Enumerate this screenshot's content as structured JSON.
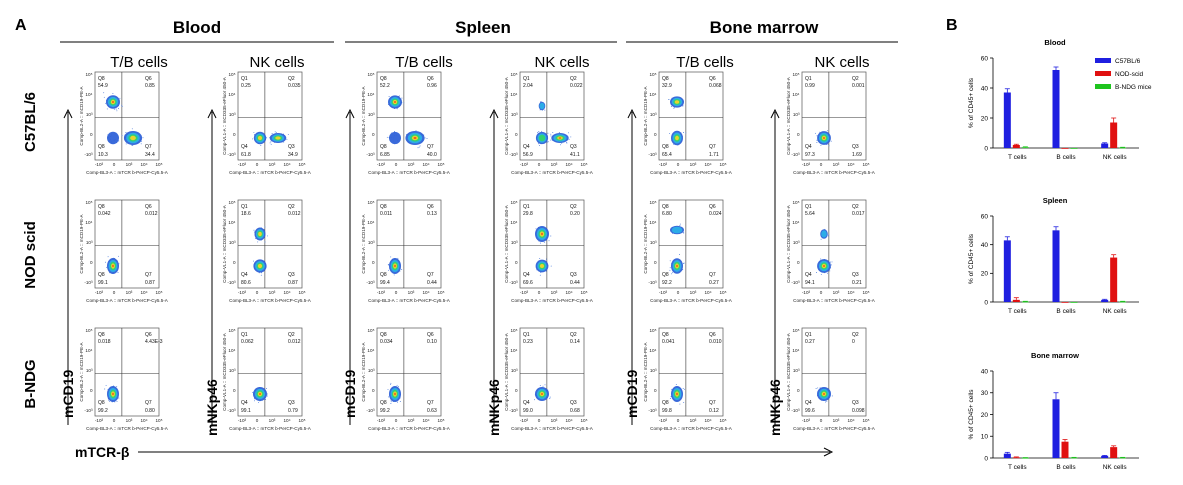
{
  "panel_a": {
    "label": "A",
    "tissues": [
      "Blood",
      "Spleen",
      "Bone marrow"
    ],
    "cell_types": [
      "T/B cells",
      "NK cells"
    ],
    "strains": [
      "C57BL/6",
      "NOD scid",
      "B-NDG"
    ],
    "y_markers": [
      "mCD19",
      "mNKp46"
    ],
    "x_marker": "mTCR-β",
    "tb_plot": {
      "y_axis_label": "Comp-BL2-A :: mCD19-PE-A",
      "x_axis_label": "Comp-BL3-A :: mTCR b-PerCP-Cy5.5-A",
      "quadrants": [
        "Q5",
        "Q6",
        "Q7",
        "Q8"
      ]
    },
    "nk_plot": {
      "y_axis_label": "Comp-VL1-A :: mCD335-eFluor 450-A",
      "x_axis_label": "Comp-BL3-A :: mTCR b-PerCP-Cy5.5-A",
      "quadrants": [
        "Q1",
        "Q2",
        "Q3",
        "Q4"
      ]
    },
    "axis_ticks": [
      "-10³",
      "0",
      "10³",
      "10⁴",
      "10⁵"
    ],
    "plots": [
      [
        {
          "type": "tb",
          "ul": "54.9",
          "ur": "0.85",
          "ll": "10.3",
          "lr": "34.4"
        },
        {
          "type": "nk",
          "ul": "0.25",
          "ur": "0.035",
          "ll": "61.8",
          "lr": "34.9"
        },
        {
          "type": "tb",
          "ul": "52.2",
          "ur": "0.96",
          "ll": "6.85",
          "lr": "40.0"
        },
        {
          "type": "nk",
          "ul": "2.04",
          "ur": "0.022",
          "ll": "56.9",
          "lr": "41.1"
        },
        {
          "type": "tb",
          "ul": "32.9",
          "ur": "0.068",
          "ll": "65.4",
          "lr": "1.71"
        },
        {
          "type": "nk",
          "ul": "0.99",
          "ur": "0.001",
          "ll": "97.3",
          "lr": "1.69"
        }
      ],
      [
        {
          "type": "tb",
          "ul": "0.042",
          "ur": "0.012",
          "ll": "99.1",
          "lr": "0.87"
        },
        {
          "type": "nk",
          "ul": "18.6",
          "ur": "0.012",
          "ll": "80.6",
          "lr": "0.87"
        },
        {
          "type": "tb",
          "ul": "0.011",
          "ur": "0.13",
          "ll": "99.4",
          "lr": "0.44"
        },
        {
          "type": "nk",
          "ul": "29.8",
          "ur": "0.20",
          "ll": "69.6",
          "lr": "0.44"
        },
        {
          "type": "tb",
          "ul": "6.80",
          "ur": "0.024",
          "ll": "92.2",
          "lr": "0.27"
        },
        {
          "type": "nk",
          "ul": "5.64",
          "ur": "0.017",
          "ll": "94.1",
          "lr": "0.21"
        }
      ],
      [
        {
          "type": "tb",
          "ul": "0.018",
          "ur": "4.43E-3",
          "ll": "99.2",
          "lr": "0.80"
        },
        {
          "type": "nk",
          "ul": "0.062",
          "ur": "0.012",
          "ll": "99.1",
          "lr": "0.79"
        },
        {
          "type": "tb",
          "ul": "0.034",
          "ur": "0.10",
          "ll": "99.2",
          "lr": "0.63"
        },
        {
          "type": "nk",
          "ul": "0.23",
          "ur": "0.14",
          "ll": "99.0",
          "lr": "0.68"
        },
        {
          "type": "tb",
          "ul": "0.041",
          "ur": "0.010",
          "ll": "99.8",
          "lr": "0.12"
        },
        {
          "type": "nk",
          "ul": "0.27",
          "ur": "0",
          "ll": "99.6",
          "lr": "0.098"
        }
      ]
    ]
  },
  "panel_b": {
    "label": "B",
    "colors": {
      "C57BL/6": "#1f1fe0",
      "NOD-scid": "#e01010",
      "B-NDG mice": "#1ec41e"
    },
    "chart_data": [
      {
        "type": "bar",
        "title": "Blood",
        "ylabel": "% of CD45+ cells",
        "categories": [
          "T cells",
          "B cells",
          "NK cells"
        ],
        "ylim": [
          0,
          60
        ],
        "yticks": [
          0,
          20,
          40,
          60
        ],
        "legend": [
          "C57BL/6",
          "NOD-scid",
          "B-NDG mice"
        ],
        "series": [
          {
            "name": "C57BL/6",
            "values": [
              37,
              52,
              3
            ],
            "errors": [
              2.5,
              2,
              0.5
            ]
          },
          {
            "name": "NOD-scid",
            "values": [
              2,
              0,
              17
            ],
            "errors": [
              0.5,
              0,
              3
            ]
          },
          {
            "name": "B-NDG mice",
            "values": [
              0.5,
              0,
              0.3
            ],
            "errors": [
              0.3,
              0,
              0.2
            ]
          }
        ]
      },
      {
        "type": "bar",
        "title": "Spleen",
        "ylabel": "% of CD45+ cells",
        "categories": [
          "T cells",
          "B cells",
          "NK cells"
        ],
        "ylim": [
          0,
          60
        ],
        "yticks": [
          0,
          20,
          40,
          60
        ],
        "series": [
          {
            "name": "C57BL/6",
            "values": [
              43,
              50,
              1.5
            ],
            "errors": [
              2.5,
              2.5,
              0.4
            ]
          },
          {
            "name": "NOD-scid",
            "values": [
              1.5,
              0,
              31
            ],
            "errors": [
              1.5,
              0,
              2
            ]
          },
          {
            "name": "B-NDG mice",
            "values": [
              0.3,
              0,
              0.3
            ],
            "errors": [
              0.2,
              0,
              0.2
            ]
          }
        ]
      },
      {
        "type": "bar",
        "title": "Bone marrow",
        "ylabel": "% of CD45+ cells",
        "categories": [
          "T cells",
          "B cells",
          "NK cells"
        ],
        "ylim": [
          0,
          40
        ],
        "yticks": [
          0,
          10,
          20,
          30,
          40
        ],
        "series": [
          {
            "name": "C57BL/6",
            "values": [
              2,
              27,
              1
            ],
            "errors": [
              0.6,
              3,
              0.2
            ]
          },
          {
            "name": "NOD-scid",
            "values": [
              0.3,
              7.5,
              5
            ],
            "errors": [
              0.2,
              1,
              0.6
            ]
          },
          {
            "name": "B-NDG mice",
            "values": [
              0.1,
              0.2,
              0.2
            ],
            "errors": [
              0.1,
              0.1,
              0.1
            ]
          }
        ]
      }
    ]
  }
}
